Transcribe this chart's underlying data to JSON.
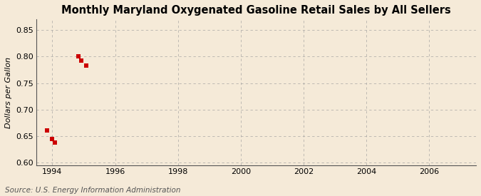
{
  "title": "Monthly Maryland Oxygenated Gasoline Retail Sales by All Sellers",
  "ylabel": "Dollars per Gallon",
  "source": "Source: U.S. Energy Information Administration",
  "xlim": [
    1993.5,
    2007.5
  ],
  "ylim": [
    0.595,
    0.87
  ],
  "yticks": [
    0.6,
    0.65,
    0.7,
    0.75,
    0.8,
    0.85
  ],
  "xticks": [
    1994,
    1996,
    1998,
    2000,
    2002,
    2004,
    2006
  ],
  "data_x": [
    1993.83,
    1994.0,
    1994.08,
    1994.83,
    1994.92,
    1995.08
  ],
  "data_y": [
    0.661,
    0.645,
    0.638,
    0.801,
    0.793,
    0.783
  ],
  "marker_color": "#cc0000",
  "marker_size": 16,
  "background_color": "#f5ead8",
  "grid_color": "#999999",
  "title_fontsize": 10.5,
  "label_fontsize": 8,
  "tick_fontsize": 8,
  "source_fontsize": 7.5
}
